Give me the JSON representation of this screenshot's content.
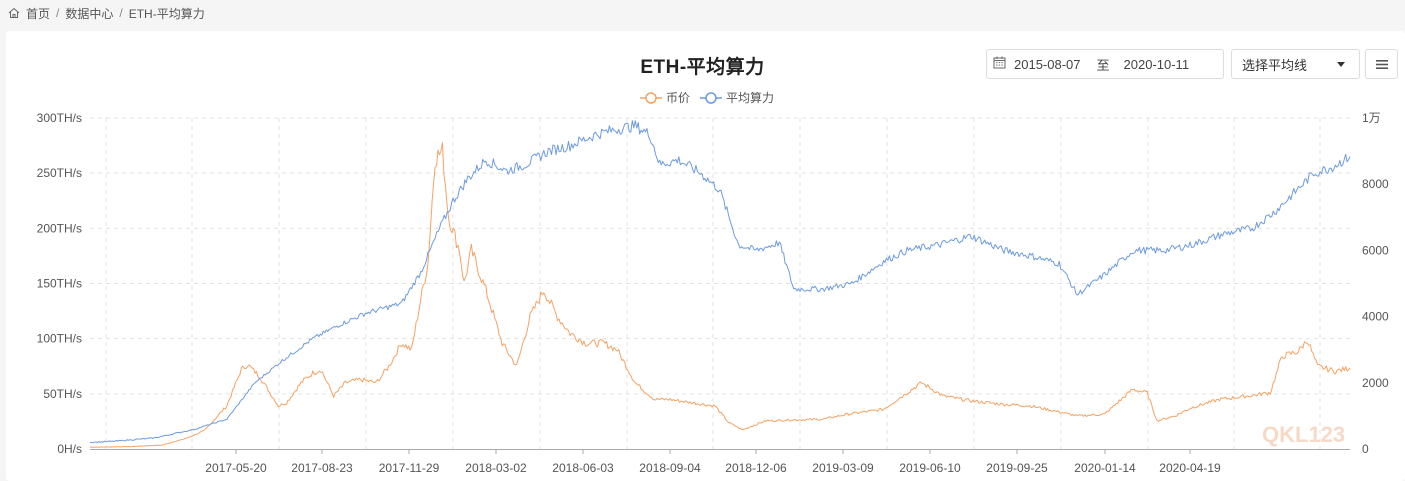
{
  "breadcrumb": {
    "icon": "home-icon",
    "items": [
      "首页",
      "数据中心",
      "ETH-平均算力"
    ],
    "separator": "/"
  },
  "header": {
    "title": "ETH-平均算力",
    "date_range": {
      "icon": "calendar-icon",
      "start": "2015-08-07",
      "separator": "至",
      "end": "2020-10-11"
    },
    "ma_select": {
      "value": "选择平均线"
    },
    "menu_icon": "hamburger-icon"
  },
  "legend": [
    {
      "label": "币价",
      "color": "#f5a263"
    },
    {
      "label": "平均算力",
      "color": "#6d9be0"
    }
  ],
  "watermark": "QKL123",
  "chart_data": {
    "type": "line",
    "title": "ETH-平均算力",
    "xlabel": "",
    "ylabel_left": "平均算力 (H/s)",
    "ylabel_right": "币价",
    "x_ticks": [
      "2017-05-20",
      "2017-08-23",
      "2017-11-29",
      "2018-03-02",
      "2018-06-03",
      "2018-09-04",
      "2018-12-06",
      "2019-03-09",
      "2019-06-10",
      "2019-09-25",
      "2020-01-14",
      "2020-04-19"
    ],
    "y_left_ticks": [
      "0H/s",
      "50TH/s",
      "100TH/s",
      "150TH/s",
      "200TH/s",
      "250TH/s",
      "300TH/s"
    ],
    "y_left_range": [
      0,
      300
    ],
    "y_right_ticks": [
      "0",
      "2000",
      "4000",
      "6000",
      "8000",
      "1万"
    ],
    "y_right_range": [
      0,
      10000
    ],
    "grid": true,
    "legend_position": "top-center",
    "x_range": [
      "2016-12-20",
      "2020-10-11"
    ],
    "series": [
      {
        "name": "币价",
        "axis": "right",
        "color": "#f5a263",
        "x": [
          "2016-12-20",
          "2017-02-01",
          "2017-03-10",
          "2017-04-05",
          "2017-04-25",
          "2017-05-20",
          "2017-06-05",
          "2017-06-12",
          "2017-06-25",
          "2017-07-16",
          "2017-07-25",
          "2017-08-10",
          "2017-08-23",
          "2017-09-01",
          "2017-09-15",
          "2017-09-28",
          "2017-10-15",
          "2017-11-01",
          "2017-11-15",
          "2017-11-29",
          "2017-12-10",
          "2017-12-20",
          "2017-12-28",
          "2018-01-05",
          "2018-01-13",
          "2018-01-20",
          "2018-02-01",
          "2018-02-06",
          "2018-02-14",
          "2018-03-02",
          "2018-03-20",
          "2018-04-05",
          "2018-04-20",
          "2018-05-05",
          "2018-05-20",
          "2018-06-03",
          "2018-06-20",
          "2018-07-10",
          "2018-07-25",
          "2018-08-14",
          "2018-09-04",
          "2018-09-20",
          "2018-10-15",
          "2018-11-10",
          "2018-11-25",
          "2018-12-10",
          "2019-01-05",
          "2019-02-05",
          "2019-03-09",
          "2019-04-05",
          "2019-05-15",
          "2019-06-10",
          "2019-06-26",
          "2019-07-20",
          "2019-08-20",
          "2019-09-25",
          "2019-10-25",
          "2019-12-15",
          "2020-01-14",
          "2020-02-14",
          "2020-03-01",
          "2020-03-12",
          "2020-04-01",
          "2020-04-19",
          "2020-05-20",
          "2020-06-20",
          "2020-07-15",
          "2020-07-28",
          "2020-08-15",
          "2020-08-25",
          "2020-09-05",
          "2020-09-25",
          "2020-10-11"
        ],
        "values": [
          55,
          70,
          120,
          320,
          550,
          1300,
          2400,
          2550,
          2200,
          1300,
          1400,
          2000,
          2300,
          2400,
          1600,
          2000,
          2100,
          2000,
          2500,
          3200,
          3000,
          4500,
          5600,
          8800,
          9000,
          7000,
          6000,
          5000,
          6000,
          4800,
          3200,
          2500,
          4000,
          4800,
          4000,
          3500,
          3200,
          3200,
          3000,
          2000,
          1500,
          1500,
          1400,
          1300,
          800,
          580,
          850,
          880,
          900,
          1050,
          1200,
          1700,
          2000,
          1600,
          1450,
          1350,
          1300,
          1000,
          1050,
          1800,
          1700,
          850,
          1000,
          1250,
          1500,
          1600,
          1700,
          2800,
          2950,
          3300,
          2500,
          2350,
          2450
        ]
      },
      {
        "name": "平均算力",
        "axis": "left",
        "color": "#6d9be0",
        "unit": "TH/s",
        "x": [
          "2016-12-20",
          "2017-01-15",
          "2017-03-01",
          "2017-04-15",
          "2017-05-20",
          "2017-06-20",
          "2017-07-20",
          "2017-08-23",
          "2017-09-20",
          "2017-10-20",
          "2017-11-29",
          "2017-12-20",
          "2018-01-10",
          "2018-01-25",
          "2018-02-10",
          "2018-03-02",
          "2018-03-25",
          "2018-04-15",
          "2018-05-10",
          "2018-06-03",
          "2018-07-01",
          "2018-07-25",
          "2018-08-14",
          "2018-08-30",
          "2018-09-10",
          "2018-10-01",
          "2018-10-25",
          "2018-11-15",
          "2018-12-06",
          "2018-12-25",
          "2019-01-20",
          "2019-02-05",
          "2019-03-09",
          "2019-04-10",
          "2019-05-15",
          "2019-06-10",
          "2019-07-15",
          "2019-08-20",
          "2019-09-25",
          "2019-10-25",
          "2019-11-25",
          "2019-12-15",
          "2020-01-14",
          "2020-02-15",
          "2020-03-20",
          "2020-04-19",
          "2020-05-25",
          "2020-06-25",
          "2020-07-20",
          "2020-08-10",
          "2020-09-01",
          "2020-09-20",
          "2020-10-11"
        ],
        "values": [
          6,
          7,
          10,
          18,
          27,
          60,
          80,
          100,
          112,
          123,
          132,
          160,
          200,
          225,
          245,
          262,
          252,
          258,
          270,
          275,
          285,
          290,
          293,
          285,
          258,
          262,
          250,
          235,
          185,
          180,
          187,
          145,
          145,
          150,
          170,
          180,
          185,
          193,
          180,
          175,
          168,
          140,
          158,
          180,
          180,
          185,
          195,
          200,
          215,
          232,
          250,
          255,
          265
        ]
      }
    ]
  }
}
